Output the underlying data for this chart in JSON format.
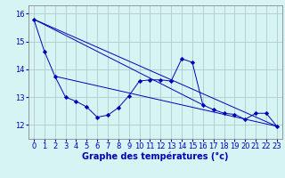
{
  "title": "Graphe des températures (°c)",
  "bg_color": "#d7f4f4",
  "line_color": "#0000bb",
  "grid_color": "#b0c8c8",
  "ylim": [
    11.5,
    16.3
  ],
  "xlim": [
    -0.5,
    23.5
  ],
  "yticks": [
    12,
    13,
    14,
    15,
    16
  ],
  "xticks": [
    0,
    1,
    2,
    3,
    4,
    5,
    6,
    7,
    8,
    9,
    10,
    11,
    12,
    13,
    14,
    15,
    16,
    17,
    18,
    19,
    20,
    21,
    22,
    23
  ],
  "series1": [
    15.8,
    14.65,
    13.75,
    13.0,
    12.85,
    12.65,
    12.28,
    12.35,
    12.62,
    13.05,
    13.58,
    13.62,
    13.62,
    13.58,
    14.38,
    14.25,
    12.72,
    12.55,
    12.42,
    12.38,
    12.2,
    12.42,
    12.42,
    11.95
  ],
  "trend1_x": [
    0,
    23
  ],
  "trend1_y": [
    15.8,
    11.95
  ],
  "trend2_x": [
    2,
    23
  ],
  "trend2_y": [
    13.75,
    11.95
  ],
  "trend3_x": [
    0,
    16
  ],
  "trend3_y": [
    15.8,
    12.72
  ],
  "xlabel_fontsize": 7,
  "tick_fontsize": 6,
  "label_color": "#0000bb"
}
